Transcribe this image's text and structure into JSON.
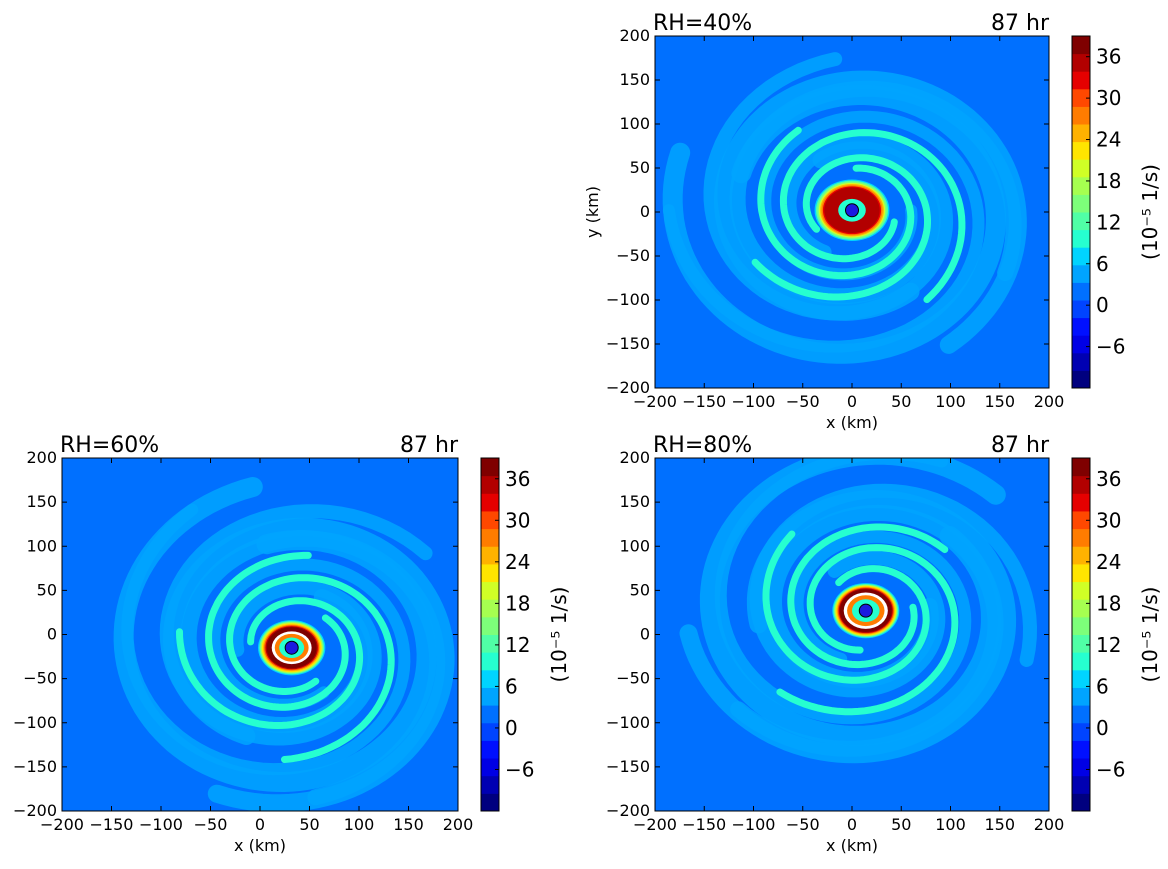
{
  "chart_data": [
    {
      "type": "heatmap",
      "panel": "top-right",
      "title_left": "RH=40%",
      "title_right": "87 hr",
      "xlabel": "x (km)",
      "ylabel": "y (km)",
      "xlim": [
        -200,
        200
      ],
      "ylim": [
        -200,
        200
      ],
      "xticks": [
        -200,
        -150,
        -100,
        -50,
        0,
        50,
        100,
        150,
        200
      ],
      "yticks": [
        -200,
        -150,
        -100,
        -50,
        0,
        50,
        100,
        150,
        200
      ],
      "center": [
        0,
        2
      ],
      "eyewall": {
        "inner_radius_km": 20,
        "outer_radius_km": 38,
        "max_value": 36,
        "white_saturation": false
      },
      "background_value": 1,
      "colorbar": {
        "label": "(10⁻⁵ 1/s)",
        "ticks": [
          -6,
          0,
          6,
          12,
          18,
          24,
          30,
          36
        ],
        "range": [
          -12,
          39
        ]
      }
    },
    {
      "type": "heatmap",
      "panel": "bottom-left",
      "title_left": "RH=60%",
      "title_right": "87 hr",
      "xlabel": "x (km)",
      "ylabel": "",
      "xlim": [
        -200,
        200
      ],
      "ylim": [
        -200,
        200
      ],
      "xticks": [
        -200,
        -150,
        -100,
        -50,
        0,
        50,
        100,
        150,
        200
      ],
      "yticks": [
        -200,
        -150,
        -100,
        -50,
        0,
        50,
        100,
        150,
        200
      ],
      "center": [
        32,
        -15
      ],
      "eyewall": {
        "inner_radius_km": 18,
        "outer_radius_km": 34,
        "max_value": 39,
        "white_saturation": true
      },
      "background_value": 1,
      "colorbar": {
        "label": "(10⁻⁵ 1/s)",
        "ticks": [
          -6,
          0,
          6,
          12,
          18,
          24,
          30,
          36
        ],
        "range": [
          -12,
          39
        ]
      }
    },
    {
      "type": "heatmap",
      "panel": "bottom-right",
      "title_left": "RH=80%",
      "title_right": "87 hr",
      "xlabel": "x (km)",
      "ylabel": "",
      "xlim": [
        -200,
        200
      ],
      "ylim": [
        -200,
        200
      ],
      "xticks": [
        -200,
        -150,
        -100,
        -50,
        0,
        50,
        100,
        150,
        200
      ],
      "yticks": [
        -200,
        -150,
        -100,
        -50,
        0,
        50,
        100,
        150,
        200
      ],
      "center": [
        14,
        27
      ],
      "eyewall": {
        "inner_radius_km": 20,
        "outer_radius_km": 34,
        "max_value": 39,
        "white_saturation": true
      },
      "background_value": 1,
      "colorbar": {
        "label": "(10⁻⁵ 1/s)",
        "ticks": [
          -6,
          0,
          6,
          12,
          18,
          24,
          30,
          36
        ],
        "range": [
          -12,
          39
        ]
      }
    }
  ],
  "colors": {
    "colormap": [
      "#00007f",
      "#0000b2",
      "#0000e5",
      "#0010ff",
      "#0044ff",
      "#0070ff",
      "#00a4ff",
      "#00d4ff",
      "#26ffd0",
      "#50ffa6",
      "#7dff7a",
      "#a6ff50",
      "#d0ff26",
      "#ffe500",
      "#ffb200",
      "#ff7c00",
      "#ff4800",
      "#e50000",
      "#b20000",
      "#7f0000"
    ],
    "center_marker": "#1a1ae0",
    "saturation": "#ffffff"
  }
}
